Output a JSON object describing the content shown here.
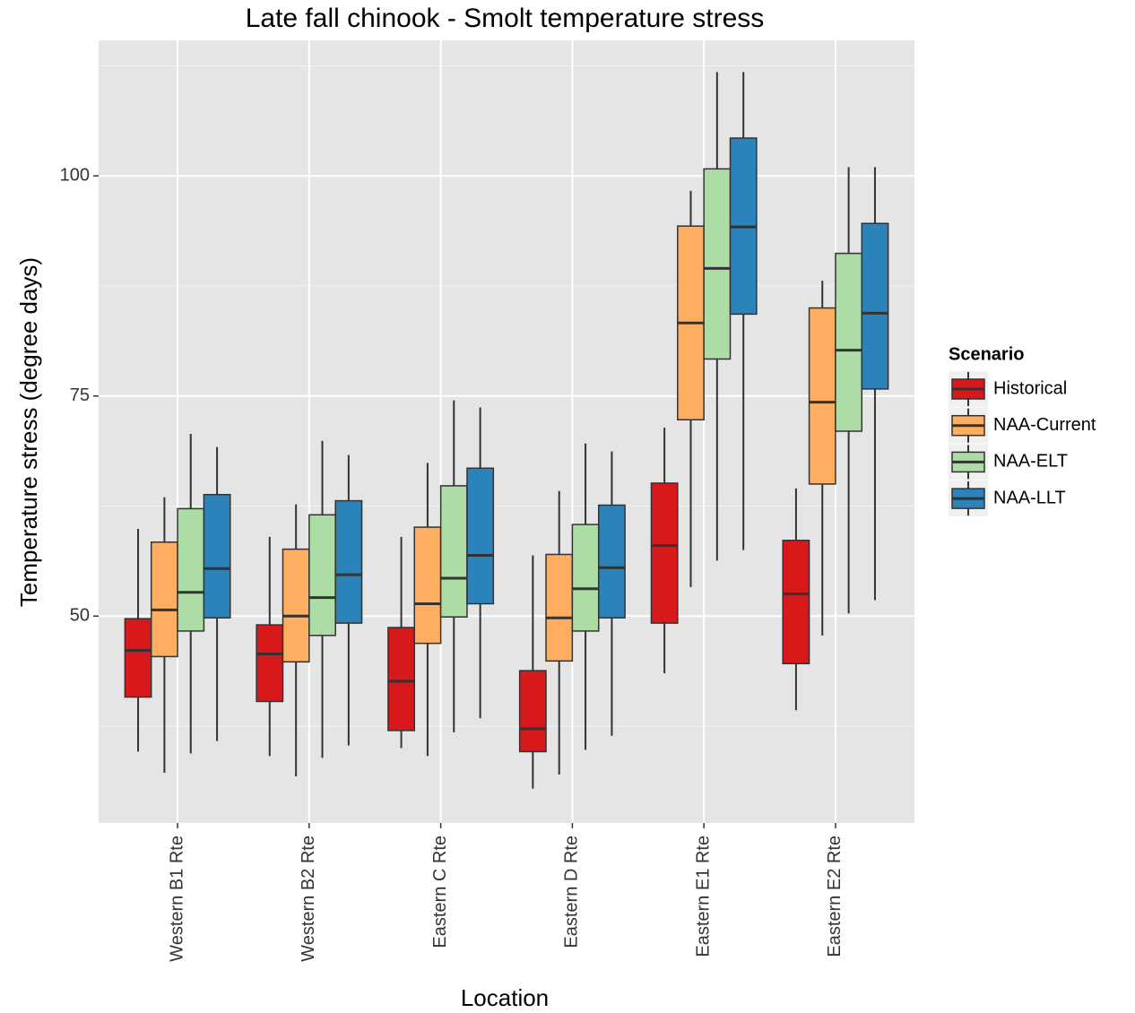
{
  "chart_data": {
    "type": "boxplot",
    "title": "Late fall chinook - Smolt temperature stress",
    "x_label": "Location",
    "y_label": "Temperature stress (degree days)",
    "categories": [
      "Western B1 Rte",
      "Western B2 Rte",
      "Eastern C Rte",
      "Eastern D Rte",
      "Eastern E1 Rte",
      "Eastern E2 Rte"
    ],
    "ylim": [
      26.5,
      115.4
    ],
    "yticks": [
      50,
      75,
      100
    ],
    "grid": true,
    "legend_title": "Scenario",
    "legend_position": "right",
    "series": [
      {
        "name": "Historical",
        "color": "#d7191c",
        "low": [
          34.6,
          34.1,
          35.0,
          30.4,
          43.5,
          39.3
        ],
        "q1": [
          40.8,
          40.3,
          37.0,
          34.6,
          49.2,
          44.6
        ],
        "median": [
          46.1,
          45.7,
          42.6,
          37.2,
          58.0,
          52.5
        ],
        "q3": [
          49.7,
          49.0,
          48.7,
          43.8,
          65.1,
          58.6
        ],
        "high": [
          59.9,
          59.0,
          59.0,
          56.9,
          71.4,
          64.5
        ]
      },
      {
        "name": "NAA-Current",
        "color": "#fdae61",
        "low": [
          32.2,
          31.8,
          34.1,
          32.0,
          53.3,
          47.8
        ],
        "q1": [
          45.4,
          44.8,
          46.9,
          44.9,
          72.3,
          65.0
        ],
        "median": [
          50.7,
          50.0,
          51.4,
          49.8,
          83.3,
          74.3
        ],
        "q3": [
          58.4,
          57.6,
          60.1,
          57.0,
          94.3,
          85.0
        ],
        "high": [
          63.5,
          62.7,
          67.4,
          64.2,
          98.3,
          88.1
        ]
      },
      {
        "name": "NAA-ELT",
        "color": "#abdda4",
        "low": [
          34.4,
          33.9,
          36.8,
          34.8,
          56.3,
          50.3
        ],
        "q1": [
          48.3,
          47.8,
          49.9,
          48.3,
          79.2,
          71.0
        ],
        "median": [
          52.7,
          52.1,
          54.3,
          53.1,
          89.5,
          80.2
        ],
        "q3": [
          62.2,
          61.5,
          64.8,
          60.4,
          100.8,
          91.2
        ],
        "high": [
          70.7,
          69.9,
          74.5,
          69.6,
          111.8,
          101.0
        ]
      },
      {
        "name": "NAA-LLT",
        "color": "#2b83ba",
        "low": [
          35.8,
          35.3,
          38.4,
          36.4,
          57.5,
          51.8
        ],
        "q1": [
          49.8,
          49.2,
          51.4,
          49.8,
          84.3,
          75.8
        ],
        "median": [
          55.4,
          54.7,
          56.9,
          55.5,
          94.2,
          84.4
        ],
        "q3": [
          63.8,
          63.1,
          66.8,
          62.6,
          104.3,
          94.6
        ],
        "high": [
          69.2,
          68.3,
          73.7,
          68.7,
          111.8,
          101.0
        ]
      }
    ]
  }
}
